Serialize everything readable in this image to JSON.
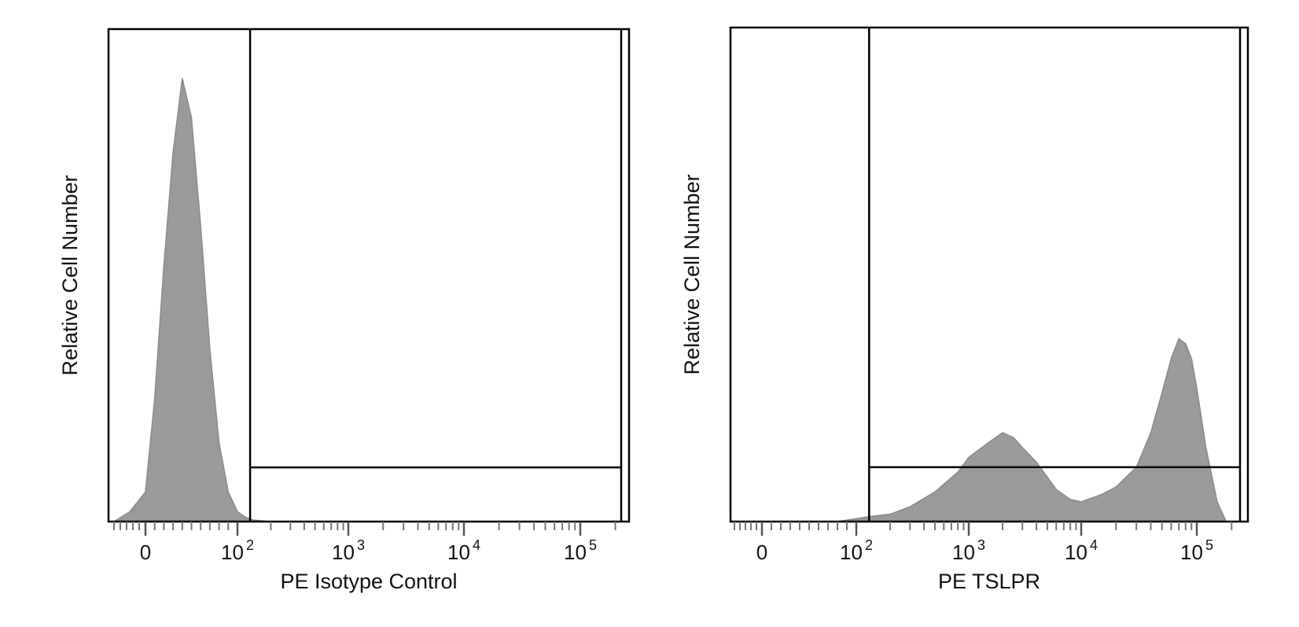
{
  "chart_data": [
    {
      "type": "histogram",
      "xlabel": "PE  Isotype Control",
      "ylabel": "Relative Cell Number",
      "x_scale": "biexponential",
      "x_ticks": [
        {
          "value": 0,
          "label": "0",
          "exp": ""
        },
        {
          "value": 100,
          "label": "10",
          "exp": "2"
        },
        {
          "value": 1000,
          "label": "10",
          "exp": "3"
        },
        {
          "value": 10000,
          "label": "10",
          "exp": "4"
        },
        {
          "value": 100000,
          "label": "10",
          "exp": "5"
        }
      ],
      "gate": {
        "x_start": 130,
        "x_end": 210000,
        "relative_height": 0.11
      },
      "fill_color": "#9a9a9a",
      "histogram": {
        "x": [
          -50,
          -25,
          0,
          10,
          20,
          30,
          40,
          50,
          60,
          70,
          80,
          90,
          100,
          120,
          140,
          200
        ],
        "relative_count": [
          0.0,
          0.02,
          0.06,
          0.25,
          0.52,
          0.75,
          0.9,
          0.82,
          0.6,
          0.35,
          0.16,
          0.06,
          0.02,
          0.008,
          0.003,
          0.0
        ]
      }
    },
    {
      "type": "histogram",
      "xlabel": "PE  TSLPR",
      "ylabel": "Relative Cell Number",
      "x_scale": "biexponential",
      "x_ticks": [
        {
          "value": 0,
          "label": "0",
          "exp": ""
        },
        {
          "value": 100,
          "label": "10",
          "exp": "2"
        },
        {
          "value": 1000,
          "label": "10",
          "exp": "3"
        },
        {
          "value": 10000,
          "label": "10",
          "exp": "4"
        },
        {
          "value": 100000,
          "label": "10",
          "exp": "5"
        }
      ],
      "gate": {
        "x_start": 130,
        "x_end": 210000,
        "relative_height": 0.11
      },
      "fill_color": "#9a9a9a",
      "histogram": {
        "x": [
          80,
          130,
          200,
          300,
          500,
          800,
          1000,
          1500,
          2000,
          2500,
          3000,
          4000,
          5000,
          6000,
          8000,
          10000,
          15000,
          20000,
          30000,
          40000,
          50000,
          60000,
          70000,
          80000,
          90000,
          100000,
          120000,
          150000,
          180000
        ],
        "relative_count": [
          0.0,
          0.01,
          0.015,
          0.03,
          0.06,
          0.1,
          0.13,
          0.16,
          0.18,
          0.17,
          0.15,
          0.12,
          0.09,
          0.065,
          0.045,
          0.04,
          0.055,
          0.07,
          0.11,
          0.18,
          0.26,
          0.33,
          0.37,
          0.36,
          0.33,
          0.27,
          0.15,
          0.04,
          0.0
        ]
      }
    }
  ]
}
